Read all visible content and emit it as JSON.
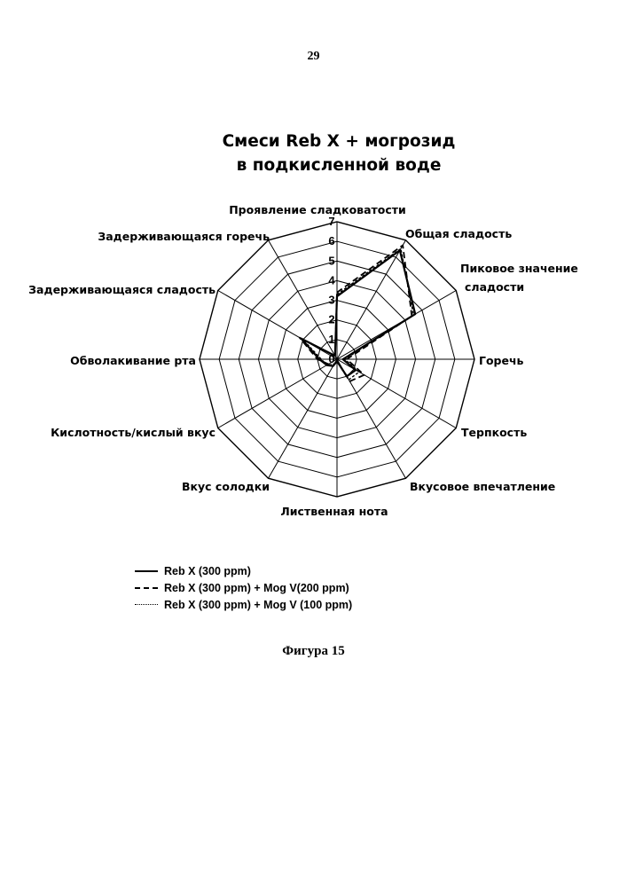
{
  "page": {
    "number": "29",
    "caption": "Фигура 15"
  },
  "chart_data": {
    "type": "radar",
    "title_lines": [
      "Смеси Reb X + могрозид",
      "в подкисленной воде"
    ],
    "axes": [
      "Проявление сладковатости",
      "Общая сладость",
      "Пиковое значение сладости",
      "Горечь",
      "Терпкость",
      "Вкусовое впечатление",
      "Лиственная нота",
      "Вкус солодки",
      "Кислотность/кислый вкус",
      "Обволакивание рта",
      "Задерживающаяся сладость",
      "Задерживающаяся горечь"
    ],
    "axis_label_lines": [
      [
        "Проявление сладковатости"
      ],
      [
        "Общая сладость"
      ],
      [
        "Пиковое значение",
        "сладости"
      ],
      [
        "Горечь"
      ],
      [
        "Терпкость"
      ],
      [
        "Вкусовое впечатление"
      ],
      [
        "Лиственная нота"
      ],
      [
        "Вкус солодки"
      ],
      [
        "Кислотность/кислый вкус"
      ],
      [
        "Обволакивание рта"
      ],
      [
        "Задерживающаяся сладость"
      ],
      [
        "Задерживающаяся горечь"
      ]
    ],
    "scale": {
      "min": 0,
      "max": 7,
      "step": 1
    },
    "ticks": [
      "0",
      "1",
      "2",
      "3",
      "4",
      "5",
      "6",
      "7"
    ],
    "series": [
      {
        "name": "Reb X (300 ppm)",
        "style": "solid",
        "values": [
          3.2,
          6.4,
          4.6,
          0.3,
          1.1,
          1.0,
          0.1,
          0.4,
          0.6,
          0.9,
          2.1,
          0.2
        ]
      },
      {
        "name": "Reb X (300 ppm) + Mog V(200 ppm)",
        "style": "dashed",
        "values": [
          3.4,
          6.7,
          4.4,
          0.5,
          1.6,
          1.3,
          0.1,
          0.3,
          0.5,
          1.0,
          2.2,
          0.2
        ]
      },
      {
        "name": "Reb X (300 ppm) + Mog V (100 ppm)",
        "style": "dotted",
        "values": [
          3.3,
          6.5,
          4.5,
          0.4,
          1.3,
          1.2,
          0.1,
          0.3,
          0.6,
          0.8,
          2.0,
          0.2
        ]
      }
    ]
  }
}
